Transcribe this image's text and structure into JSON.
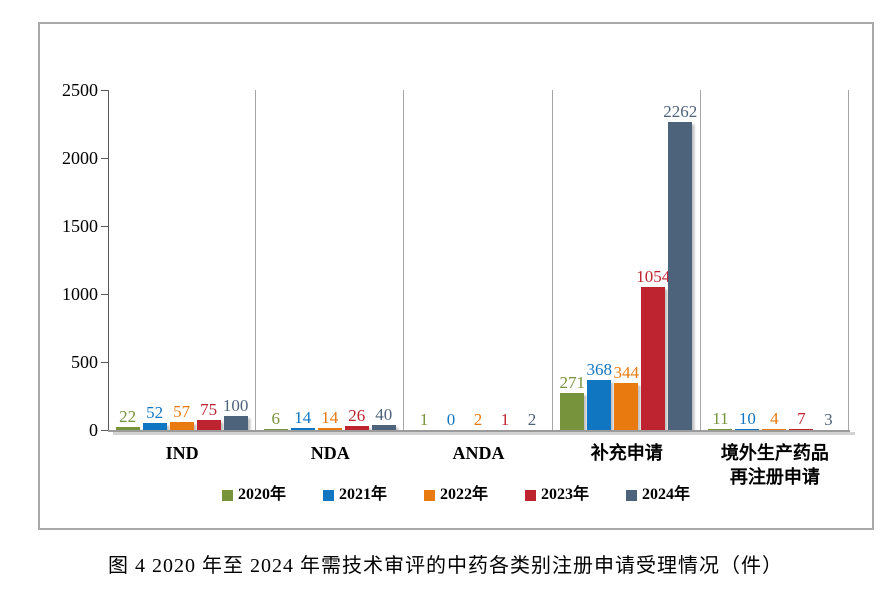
{
  "figure_caption": "图 4  2020 年至 2024 年需技术审评的中药各类别注册申请受理情况（件）",
  "chart_data": {
    "type": "bar",
    "title": "",
    "categories": [
      "IND",
      "NDA",
      "ANDA",
      "补充申请",
      "境外生产药品再注册申请"
    ],
    "category_display_lines": [
      [
        "IND"
      ],
      [
        "NDA"
      ],
      [
        "ANDA"
      ],
      [
        "补充申请"
      ],
      [
        "境外生产药品",
        "再注册申请"
      ]
    ],
    "series": [
      {
        "name": "2020年",
        "color": "#77933C",
        "values": [
          22,
          6,
          1,
          271,
          11
        ]
      },
      {
        "name": "2021年",
        "color": "#1176C2",
        "values": [
          52,
          14,
          0,
          368,
          10
        ]
      },
      {
        "name": "2022年",
        "color": "#E87A10",
        "values": [
          57,
          14,
          2,
          344,
          4
        ]
      },
      {
        "name": "2023年",
        "color": "#BE2330",
        "values": [
          75,
          26,
          1,
          1054,
          7
        ]
      },
      {
        "name": "2024年",
        "color": "#4D627B",
        "values": [
          100,
          40,
          2,
          2262,
          3
        ]
      }
    ],
    "ylim": [
      0,
      2500
    ],
    "yticks": [
      0,
      500,
      1000,
      1500,
      2000,
      2500
    ],
    "legend_position": "bottom",
    "grid": "vertical-category-dividers",
    "frame_border_color": "#A9A9A9",
    "divider_color": "#A6A6A6",
    "axis_color": "#595959"
  }
}
